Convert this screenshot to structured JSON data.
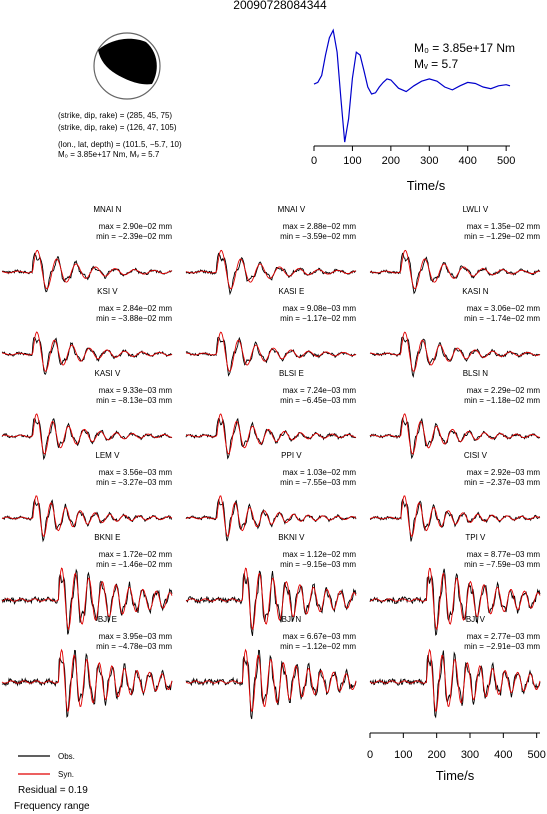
{
  "title": "20090728084344",
  "colors": {
    "observed": "#000000",
    "synthetic": "#e00000",
    "stf": "#0000cc"
  },
  "mechanism": {
    "line1": "(strike, dip, rake) = (285, 45, 75)",
    "line2": "(strike, dip, rake) = (126, 47, 105)",
    "line3": "(lon., lat, depth) = (101.5, −5.7, 10)",
    "line4": "M₀ = 3.85e+17 Nm, Mᵥ = 5.7"
  },
  "chart_data": [
    {
      "type": "line",
      "role": "source-time-function",
      "xlabel": "Time/s",
      "xlim": [
        0,
        510
      ],
      "xticks": [
        "0",
        "100",
        "200",
        "300",
        "400",
        "500"
      ],
      "annotation_m0": "M₀ = 3.85e+17 Nm",
      "annotation_mw": "Mᵥ = 5.7",
      "x": [
        0,
        10,
        20,
        30,
        40,
        50,
        60,
        70,
        80,
        90,
        100,
        110,
        120,
        130,
        140,
        150,
        160,
        170,
        180,
        190,
        200,
        220,
        240,
        260,
        280,
        300,
        320,
        340,
        360,
        380,
        400,
        420,
        440,
        460,
        480,
        500,
        510
      ],
      "y": [
        0.05,
        0.08,
        0.2,
        0.55,
        0.85,
        0.98,
        0.6,
        -0.2,
        -0.95,
        -0.55,
        0.15,
        0.6,
        0.55,
        0.28,
        0.0,
        -0.12,
        -0.1,
        0.0,
        0.08,
        0.14,
        0.12,
        -0.02,
        -0.08,
        0.02,
        0.1,
        0.14,
        0.1,
        0.0,
        -0.05,
        0.02,
        0.08,
        0.06,
        0.0,
        -0.03,
        0.02,
        0.04,
        0.02
      ]
    },
    {
      "type": "line",
      "role": "waveform-grid",
      "xlabel": "Time/s",
      "xlim": [
        0,
        510
      ],
      "xticks": [
        "0",
        "100",
        "200",
        "300",
        "400",
        "500"
      ],
      "legend": {
        "obs": "Obs.",
        "syn": "Syn."
      },
      "residual": "Residual = 0.19",
      "frequency_label": "Frequency range",
      "panels": [
        {
          "station": "MNAI N",
          "max": "max = 2.90e−02 mm",
          "min": "min = −2.39e−02 mm"
        },
        {
          "station": "MNAI V",
          "max": "max = 2.88e−02 mm",
          "min": "min = −3.59e−02 mm"
        },
        {
          "station": "LWLI V",
          "max": "max = 1.35e−02 mm",
          "min": "min = −1.29e−02 mm"
        },
        {
          "station": "KSI V",
          "max": "max = 2.84e−02 mm",
          "min": "min = −3.88e−02 mm"
        },
        {
          "station": "KASI E",
          "max": "max = 9.08e−03 mm",
          "min": "min = −1.17e−02 mm"
        },
        {
          "station": "KASI N",
          "max": "max = 3.06e−02 mm",
          "min": "min = −1.74e−02 mm"
        },
        {
          "station": "KASI V",
          "max": "max = 9.33e−03 mm",
          "min": "min = −8.13e−03 mm"
        },
        {
          "station": "BLSI E",
          "max": "max = 7.24e−03 mm",
          "min": "min = −6.45e−03 mm"
        },
        {
          "station": "BLSI N",
          "max": "max = 2.29e−02 mm",
          "min": "min = −1.18e−02 mm"
        },
        {
          "station": "LEM V",
          "max": "max = 3.56e−03 mm",
          "min": "min = −3.27e−03 mm"
        },
        {
          "station": "PPI V",
          "max": "max = 1.03e−02 mm",
          "min": "min = −7.55e−03 mm"
        },
        {
          "station": "CISI V",
          "max": "max = 2.92e−03 mm",
          "min": "min = −2.37e−03 mm"
        },
        {
          "station": "BKNI E",
          "max": "max = 1.72e−02 mm",
          "min": "min = −1.46e−02 mm"
        },
        {
          "station": "BKNI V",
          "max": "max = 1.12e−02 mm",
          "min": "min = −9.15e−03 mm"
        },
        {
          "station": "TPI V",
          "max": "max = 8.77e−03 mm",
          "min": "min = −7.59e−03 mm"
        },
        {
          "station": "BJI E",
          "max": "max = 3.95e−03 mm",
          "min": "min = −4.78e−03 mm"
        },
        {
          "station": "BJI N",
          "max": "max = 6.67e−03 mm",
          "min": "min = −1.12e−02 mm"
        },
        {
          "station": "BJI V",
          "max": "max = 2.77e−03 mm",
          "min": "min = −2.91e−03 mm"
        }
      ]
    }
  ]
}
